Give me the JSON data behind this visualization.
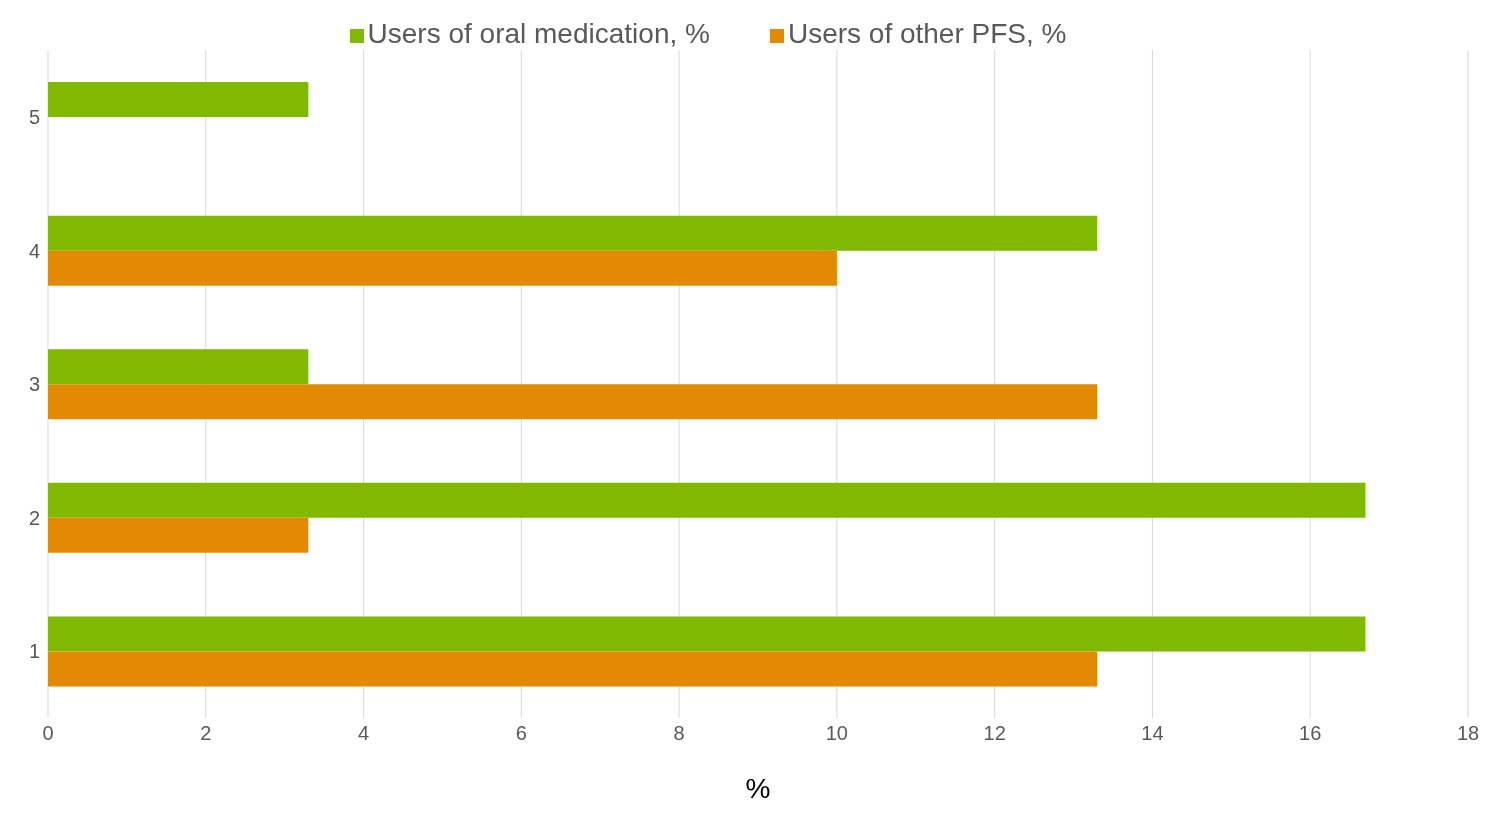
{
  "chart_data": {
    "type": "bar",
    "orientation": "horizontal",
    "categories": [
      "5",
      "4",
      "3",
      "2",
      "1"
    ],
    "series": [
      {
        "name": "Users of oral medication, %",
        "color": "#7fba00",
        "values": [
          3.3,
          13.3,
          3.3,
          16.7,
          16.7
        ]
      },
      {
        "name": "Users of other PFS, %",
        "color": "#e28a03",
        "values": [
          null,
          10,
          13.3,
          3.3,
          13.3
        ]
      }
    ],
    "xlabel": "%",
    "xlim": [
      0,
      18
    ],
    "xticks": [
      0,
      2,
      4,
      6,
      8,
      10,
      12,
      14,
      16,
      18
    ],
    "grid": "x",
    "legend": "top"
  }
}
